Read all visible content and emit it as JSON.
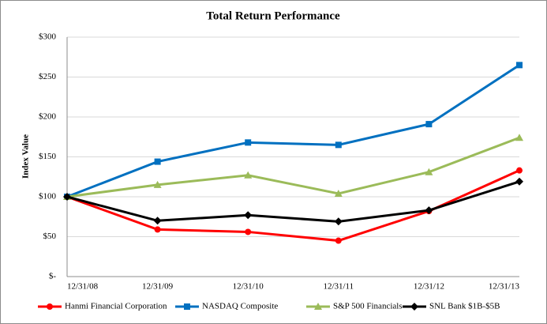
{
  "chart_data": {
    "type": "line",
    "title": "Total Return Performance",
    "y_label": "Index Value",
    "categories": [
      "12/31/08",
      "12/31/09",
      "12/31/10",
      "12/31/11",
      "12/31/12",
      "12/31/13"
    ],
    "series": [
      {
        "name": "Hanmi Financial Corporation",
        "color": "#ff0000",
        "marker": "circle",
        "values": [
          100,
          59,
          56,
          45,
          82,
          133
        ]
      },
      {
        "name": "NASDAQ Composite",
        "color": "#0070c0",
        "marker": "square",
        "values": [
          100,
          144,
          168,
          165,
          191,
          265
        ]
      },
      {
        "name": "S&P 500 Financials",
        "color": "#9bbb59",
        "marker": "triangle",
        "values": [
          100,
          115,
          127,
          104,
          131,
          174
        ]
      },
      {
        "name": "SNL Bank $1B-$5B",
        "color": "#000000",
        "marker": "diamond",
        "values": [
          100,
          70,
          77,
          69,
          83,
          119
        ]
      }
    ],
    "ylim": [
      0,
      300
    ],
    "yticks": [
      {
        "value": 0,
        "label": "$-"
      },
      {
        "value": 50,
        "label": "$50"
      },
      {
        "value": 100,
        "label": "$100"
      },
      {
        "value": 150,
        "label": "$150"
      },
      {
        "value": 200,
        "label": "$200"
      },
      {
        "value": 250,
        "label": "$250"
      },
      {
        "value": 300,
        "label": "$300"
      }
    ],
    "grid": true,
    "legend": "bottom"
  }
}
